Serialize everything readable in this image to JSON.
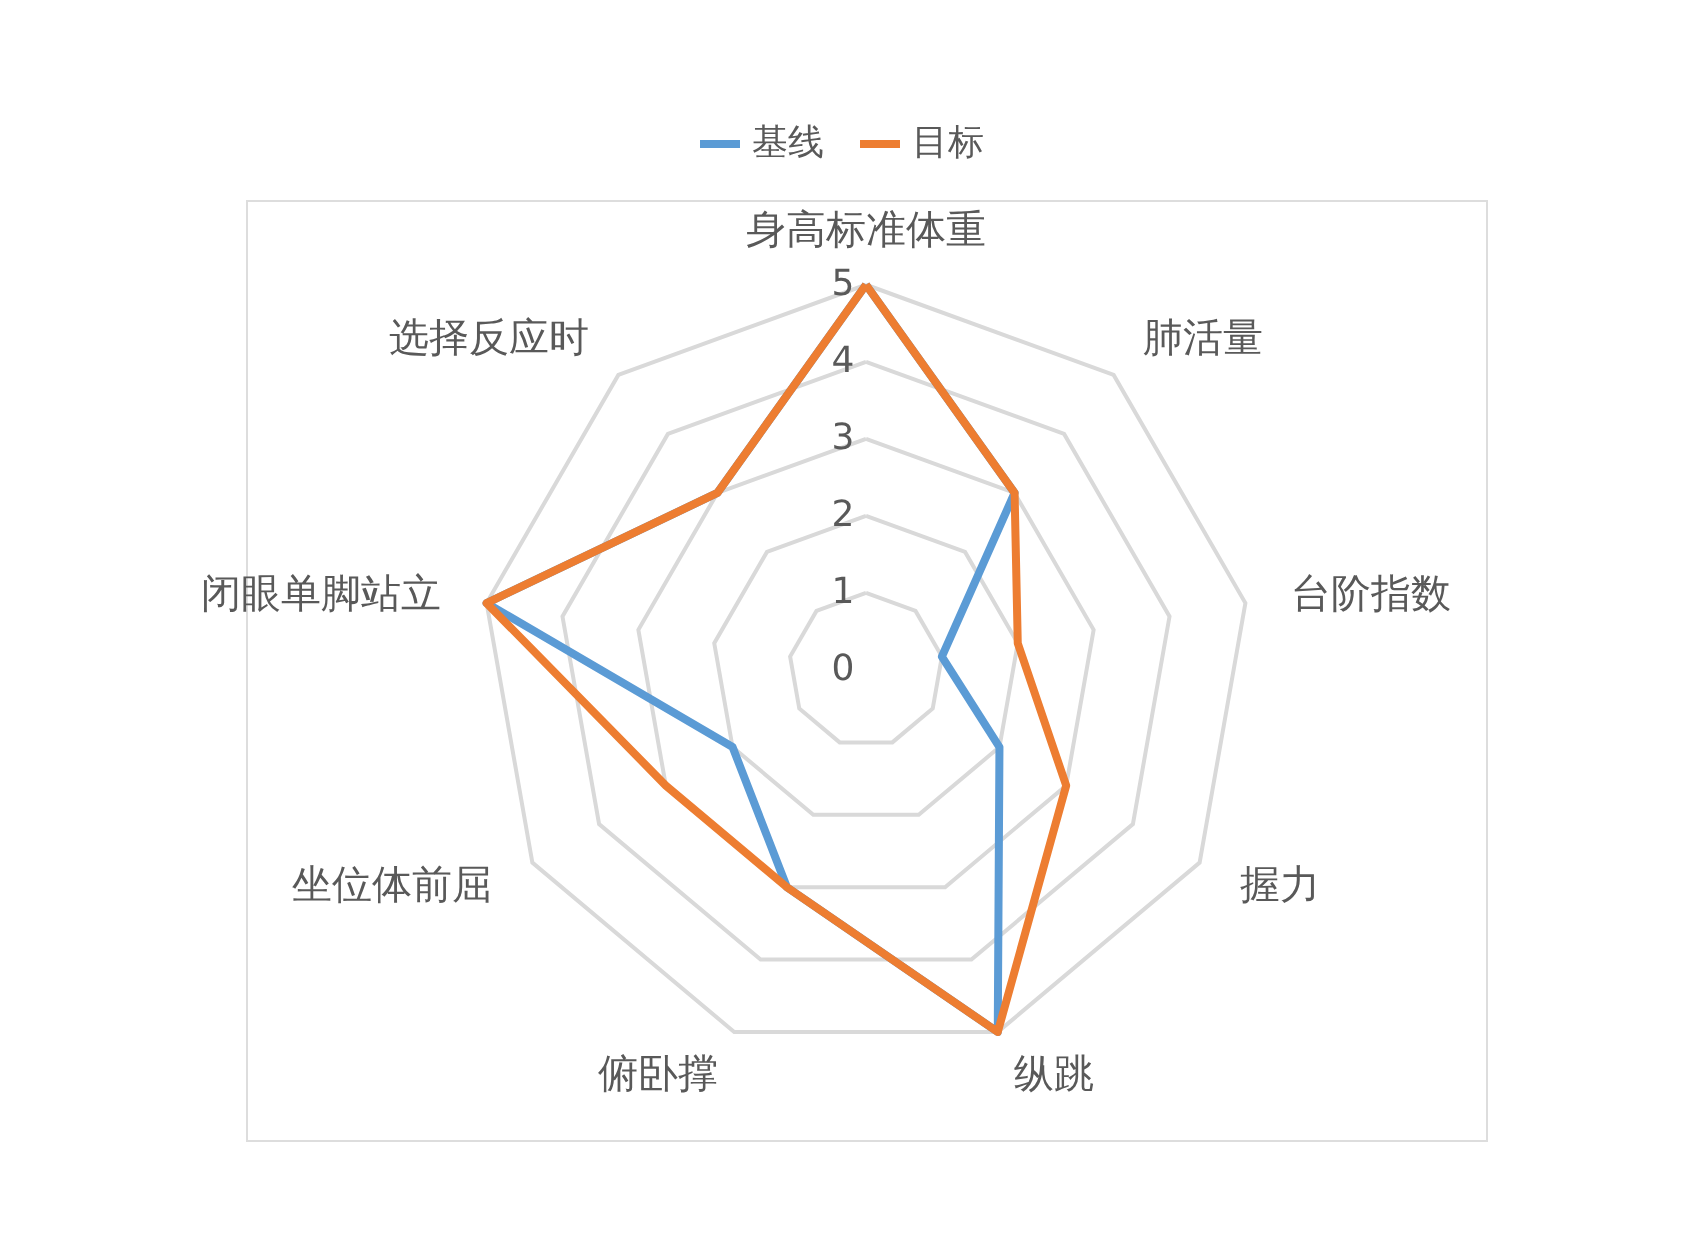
{
  "chart_data": {
    "type": "radar",
    "categories": [
      "身高标准体重",
      "肺活量",
      "台阶指数",
      "握力",
      "纵跳",
      "俯卧撑",
      "坐位体前屈",
      "闭眼单脚站立",
      "选择反应时"
    ],
    "series": [
      {
        "name": "基线",
        "color": "#5b9bd5",
        "values": [
          5,
          3,
          1,
          2,
          5,
          3,
          2,
          5,
          3
        ]
      },
      {
        "name": "目标",
        "color": "#ed7d31",
        "values": [
          5,
          3,
          2,
          3,
          5,
          3,
          3,
          5,
          3
        ]
      }
    ],
    "ylim": [
      0,
      5
    ],
    "yticks": [
      0,
      1,
      2,
      3,
      4,
      5
    ],
    "grid": true,
    "legend": "top",
    "line_style": "solid",
    "marker": "none"
  }
}
